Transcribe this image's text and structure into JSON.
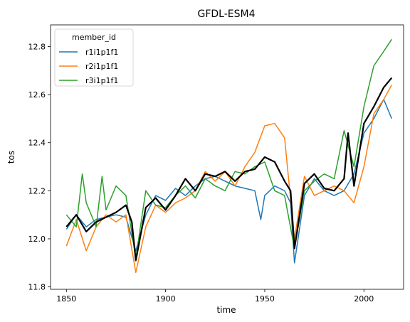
{
  "chart_data": {
    "type": "line",
    "title": "GFDL-ESM4",
    "xlabel": "time",
    "ylabel": "tos",
    "xlim": [
      1842,
      2020
    ],
    "ylim": [
      11.79,
      12.89
    ],
    "x_ticks": [
      1850,
      1900,
      1950,
      2000
    ],
    "y_ticks": [
      11.8,
      12.0,
      12.2,
      12.4,
      12.6,
      12.8
    ],
    "x_tick_labels": [
      "1850",
      "1900",
      "1950",
      "2000"
    ],
    "y_tick_labels": [
      "11.8",
      "12.0",
      "12.2",
      "12.4",
      "12.6",
      "12.8"
    ],
    "legend": {
      "title": "member_id",
      "placement": "upper left"
    },
    "series": [
      {
        "name": "r1i1p1f1",
        "color": "#1f77b4",
        "x": [
          1850,
          1855,
          1860,
          1865,
          1870,
          1875,
          1880,
          1885,
          1890,
          1895,
          1900,
          1905,
          1910,
          1915,
          1920,
          1925,
          1930,
          1935,
          1940,
          1945,
          1948,
          1950,
          1955,
          1960,
          1963,
          1965,
          1970,
          1975,
          1980,
          1985,
          1990,
          1995,
          2000,
          2005,
          2010,
          2014
        ],
        "values": [
          12.04,
          12.1,
          12.05,
          12.08,
          12.09,
          12.1,
          12.09,
          11.95,
          12.1,
          12.18,
          12.16,
          12.21,
          12.18,
          12.22,
          12.25,
          12.26,
          12.24,
          12.22,
          12.21,
          12.2,
          12.08,
          12.18,
          12.22,
          12.2,
          12.15,
          11.9,
          12.18,
          12.25,
          12.2,
          12.18,
          12.2,
          12.27,
          12.44,
          12.5,
          12.58,
          12.5
        ]
      },
      {
        "name": "r2i1p1f1",
        "color": "#ff7f0e",
        "x": [
          1850,
          1855,
          1860,
          1865,
          1870,
          1875,
          1880,
          1885,
          1890,
          1895,
          1900,
          1905,
          1910,
          1915,
          1920,
          1925,
          1930,
          1935,
          1940,
          1945,
          1950,
          1955,
          1960,
          1965,
          1970,
          1975,
          1980,
          1985,
          1990,
          1995,
          2000,
          2005,
          2010,
          2014
        ],
        "values": [
          11.97,
          12.08,
          11.95,
          12.05,
          12.1,
          12.07,
          12.1,
          11.86,
          12.05,
          12.14,
          12.11,
          12.15,
          12.17,
          12.2,
          12.28,
          12.24,
          12.28,
          12.22,
          12.3,
          12.36,
          12.47,
          12.48,
          12.42,
          12.0,
          12.26,
          12.18,
          12.2,
          12.22,
          12.2,
          12.15,
          12.3,
          12.52,
          12.58,
          12.64
        ]
      },
      {
        "name": "r3i1p1f1",
        "color": "#2ca02c",
        "x": [
          1850,
          1855,
          1858,
          1860,
          1865,
          1868,
          1870,
          1875,
          1880,
          1885,
          1890,
          1895,
          1900,
          1905,
          1910,
          1915,
          1920,
          1925,
          1930,
          1935,
          1940,
          1945,
          1950,
          1955,
          1960,
          1965,
          1970,
          1975,
          1980,
          1985,
          1990,
          1995,
          2000,
          2005,
          2010,
          2014
        ],
        "values": [
          12.1,
          12.05,
          12.27,
          12.15,
          12.05,
          12.26,
          12.12,
          12.22,
          12.18,
          11.92,
          12.2,
          12.14,
          12.13,
          12.18,
          12.22,
          12.17,
          12.25,
          12.22,
          12.2,
          12.28,
          12.27,
          12.3,
          12.32,
          12.2,
          12.18,
          11.96,
          12.2,
          12.24,
          12.27,
          12.25,
          12.45,
          12.3,
          12.55,
          12.72,
          12.78,
          12.83
        ]
      },
      {
        "name": "",
        "color": "#000000",
        "x": [
          1850,
          1855,
          1860,
          1865,
          1870,
          1875,
          1880,
          1883,
          1885,
          1890,
          1895,
          1900,
          1905,
          1910,
          1915,
          1920,
          1925,
          1930,
          1935,
          1940,
          1945,
          1950,
          1955,
          1960,
          1963,
          1965,
          1970,
          1975,
          1980,
          1985,
          1990,
          1992,
          1995,
          2000,
          2005,
          2010,
          2014
        ],
        "values": [
          12.05,
          12.1,
          12.03,
          12.07,
          12.09,
          12.11,
          12.14,
          12.07,
          11.91,
          12.13,
          12.17,
          12.12,
          12.18,
          12.25,
          12.2,
          12.27,
          12.26,
          12.28,
          12.24,
          12.28,
          12.29,
          12.34,
          12.32,
          12.24,
          12.2,
          11.96,
          12.23,
          12.27,
          12.21,
          12.2,
          12.25,
          12.44,
          12.22,
          12.48,
          12.55,
          12.63,
          12.67
        ]
      }
    ]
  }
}
